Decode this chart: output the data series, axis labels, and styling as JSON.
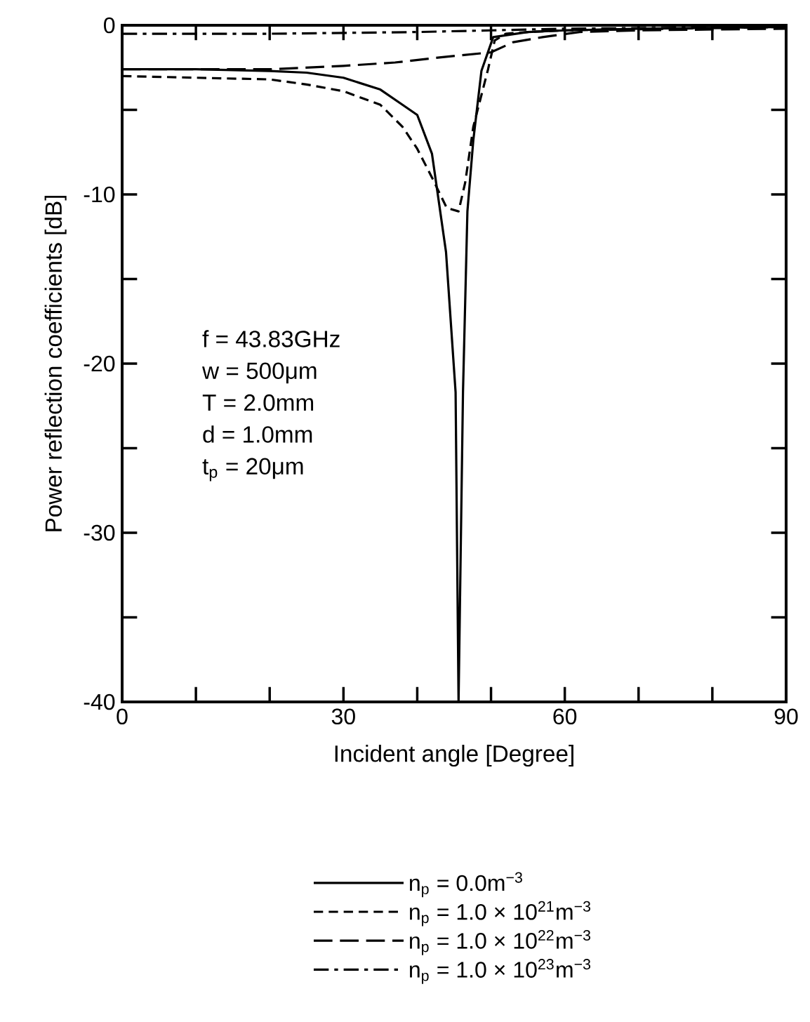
{
  "chart_data": {
    "type": "line",
    "xlabel": "Incident angle [Degree]",
    "ylabel": "Power reflection coefficients [dB]",
    "xlim": [
      0,
      90
    ],
    "ylim": [
      -40,
      0
    ],
    "xticks": [
      0,
      {
        "value": 10,
        "label": null
      },
      {
        "value": 20,
        "label": null
      },
      30,
      {
        "value": 40,
        "label": null
      },
      {
        "value": 50,
        "label": null
      },
      60,
      {
        "value": 70,
        "label": null
      },
      {
        "value": 80,
        "label": null
      },
      90
    ],
    "yticks": [
      -40,
      {
        "value": -35,
        "label": null
      },
      -30,
      {
        "value": -25,
        "label": null
      },
      -20,
      {
        "value": -15,
        "label": null
      },
      -10,
      {
        "value": -5,
        "label": null
      },
      0
    ],
    "legend": "bottom",
    "marker": "none",
    "annotations": [
      "f = 43.83GHz",
      "w = 500μm",
      "T = 2.0mm",
      "d = 1.0mm",
      "t$_{p}$ = 20μm"
    ],
    "series": [
      {
        "name": "n$_{p}$ = 0.0m$^{−3}$",
        "color": "#000000",
        "line_style": "solid",
        "x": [
          0,
          10,
          20,
          25,
          30,
          35,
          38,
          40,
          42,
          43.9,
          45.2,
          45.6,
          46.2,
          46.8,
          47.6,
          48.7,
          50.3,
          55,
          60,
          70,
          90
        ],
        "values": [
          -2.6,
          -2.6,
          -2.7,
          -2.8,
          -3.1,
          -3.8,
          -4.7,
          -5.3,
          -7.6,
          -13.4,
          -21.7,
          -40,
          -21.7,
          -11,
          -6.8,
          -2.7,
          -0.7,
          -0.4,
          -0.3,
          -0.2,
          -0.1
        ]
      },
      {
        "name": "n$_{p}$ = 1.0 × 10$^{21}$m$^{−3}$",
        "color": "#000000",
        "line_style": "dashed",
        "x": [
          0,
          10,
          20,
          25,
          30,
          35,
          38,
          40,
          42,
          44,
          45.6,
          46.5,
          47.6,
          48.6,
          49.6,
          50.5,
          52,
          55,
          60,
          90
        ],
        "values": [
          -3.0,
          -3.1,
          -3.2,
          -3.5,
          -3.9,
          -4.7,
          -6,
          -7.3,
          -9,
          -10.8,
          -11,
          -9.3,
          -6,
          -4.3,
          -2.6,
          -0.9,
          -0.5,
          -0.4,
          -0.3,
          -0.1
        ]
      },
      {
        "name": "n$_{p}$ = 1.0 × 10$^{22}$m$^{−3}$",
        "color": "#000000",
        "line_style": "loosely dashed",
        "x": [
          0,
          10,
          20,
          30,
          37,
          43,
          50,
          53,
          57,
          62,
          70,
          90
        ],
        "values": [
          -2.6,
          -2.6,
          -2.6,
          -2.4,
          -2.2,
          -1.9,
          -1.6,
          -1.0,
          -0.7,
          -0.4,
          -0.3,
          -0.2
        ]
      },
      {
        "name": "n$_{p}$ = 1.0 × 10$^{23}$m$^{−3}$",
        "color": "#000000",
        "line_style": "dashdotted",
        "x": [
          0,
          20,
          40,
          50,
          60,
          90
        ],
        "values": [
          -0.5,
          -0.5,
          -0.4,
          -0.3,
          -0.2,
          -0.1
        ]
      }
    ]
  }
}
